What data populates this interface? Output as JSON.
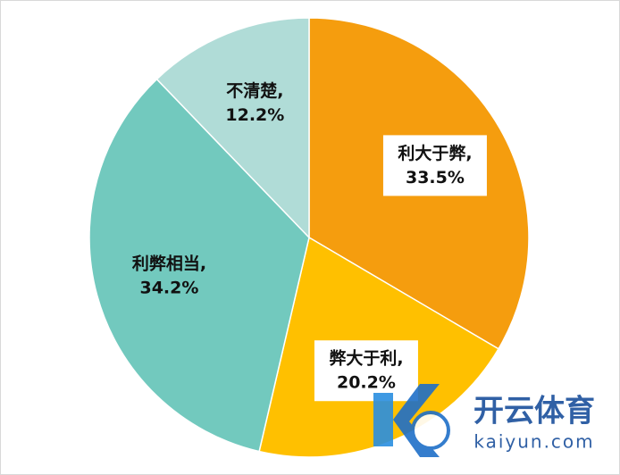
{
  "chart_data": {
    "type": "pie",
    "categories": [
      "利大于弊,",
      "弊大于利,",
      "利弊相当,",
      "不清楚,"
    ],
    "values": [
      33.5,
      20.2,
      34.2,
      12.2
    ],
    "value_labels": [
      "33.5%",
      "20.2%",
      "34.2%",
      "12.2%"
    ],
    "colors": [
      "#F59D0E",
      "#FFC000",
      "#72C9BE",
      "#B0DCD7"
    ],
    "annotations": [
      "开云体育",
      "kaiyun.com"
    ]
  }
}
